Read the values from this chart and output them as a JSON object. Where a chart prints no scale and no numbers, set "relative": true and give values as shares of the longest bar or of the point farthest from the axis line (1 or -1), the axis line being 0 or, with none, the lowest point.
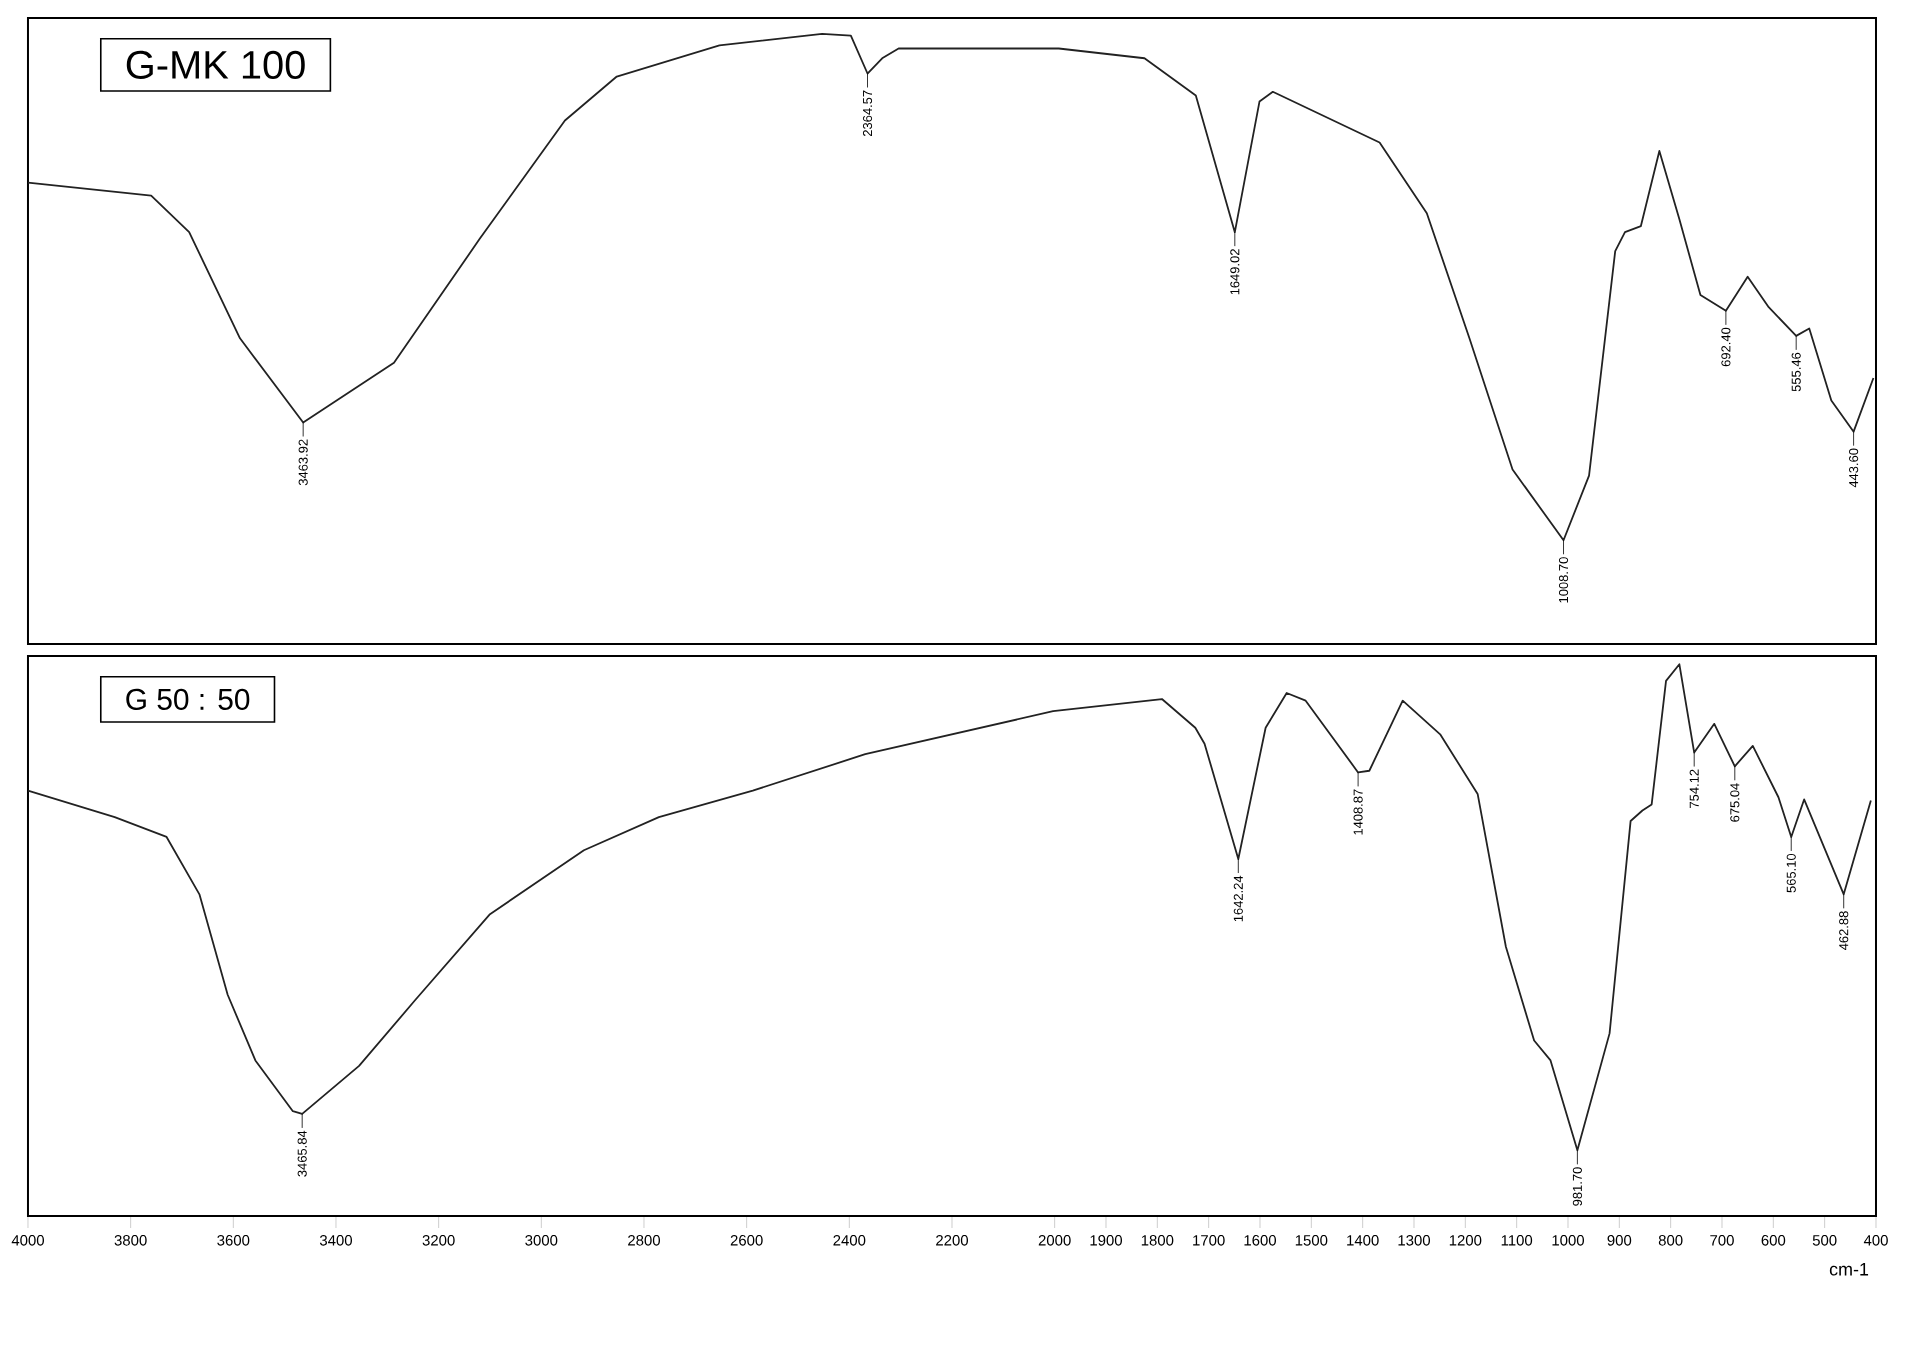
{
  "chart_data": [
    {
      "type": "line",
      "title": "G-MK 100",
      "relative": true,
      "color": "#222222",
      "xlim": [
        4000,
        400
      ],
      "tick_labels": false,
      "xticks": [
        4000,
        3800,
        3600,
        3400,
        3200,
        3000,
        2800,
        2600,
        2400,
        2200,
        2000,
        1900,
        1800,
        1700,
        1600,
        1500,
        1400,
        1300,
        1200,
        1100,
        1000,
        900,
        800,
        700,
        600,
        500,
        400
      ],
      "x": [
        4000,
        3760,
        3686,
        3587,
        3463.92,
        3287,
        3120,
        2954,
        2853,
        2653,
        2453,
        2397,
        2364.57,
        2336,
        2304,
        1992,
        1825,
        1725,
        1649.02,
        1601,
        1575,
        1367,
        1275,
        1192,
        1108,
        1008.7,
        959,
        908,
        889,
        858,
        822,
        783,
        742,
        692.4,
        650,
        609,
        555.46,
        530,
        487,
        443.6,
        405
      ],
      "values": [
        0.756,
        0.735,
        0.675,
        0.501,
        0.363,
        0.461,
        0.664,
        0.858,
        0.93,
        0.981,
        1.0,
        0.997,
        0.935,
        0.96,
        0.976,
        0.976,
        0.96,
        0.899,
        0.675,
        0.889,
        0.905,
        0.822,
        0.706,
        0.501,
        0.286,
        0.17,
        0.276,
        0.644,
        0.675,
        0.685,
        0.808,
        0.696,
        0.572,
        0.546,
        0.602,
        0.552,
        0.505,
        0.517,
        0.399,
        0.348,
        0.436
      ],
      "annotations": [
        {
          "text": "3463.92",
          "x": 3463.92,
          "y": 0.363
        },
        {
          "text": "2364.57",
          "x": 2364.57,
          "y": 0.935
        },
        {
          "text": "1649.02",
          "x": 1649.02,
          "y": 0.675
        },
        {
          "text": "1008.70",
          "x": 1008.7,
          "y": 0.17
        },
        {
          "text": "692.40",
          "x": 692.4,
          "y": 0.546
        },
        {
          "text": "555.46",
          "x": 555.46,
          "y": 0.505
        },
        {
          "text": "443.60",
          "x": 443.6,
          "y": 0.348
        }
      ]
    },
    {
      "type": "line",
      "title": "G 50 : 50",
      "relative": true,
      "color": "#222222",
      "xlim": [
        4000,
        400
      ],
      "tick_labels": "x",
      "xlabel": "cm-1",
      "xticks": [
        4000,
        3800,
        3600,
        3400,
        3200,
        3000,
        2800,
        2600,
        2400,
        2200,
        2000,
        1900,
        1800,
        1700,
        1600,
        1500,
        1400,
        1300,
        1200,
        1100,
        1000,
        900,
        800,
        700,
        600,
        500,
        400
      ],
      "x": [
        4000,
        3831,
        3730,
        3666,
        3611,
        3557,
        3484,
        3465.84,
        3355,
        3246,
        3100,
        2917,
        2771,
        2588,
        2369,
        2003,
        1791,
        1726,
        1708,
        1642.24,
        1589,
        1548,
        1511,
        1408.87,
        1387,
        1322,
        1249,
        1176,
        1121,
        1066,
        1034,
        981.7,
        919,
        878,
        855,
        837,
        809,
        783,
        754.12,
        715,
        675.04,
        640,
        590,
        565.1,
        540,
        462.88,
        410
      ],
      "values": [
        0.771,
        0.723,
        0.687,
        0.583,
        0.401,
        0.282,
        0.19,
        0.185,
        0.272,
        0.391,
        0.547,
        0.663,
        0.723,
        0.771,
        0.837,
        0.915,
        0.937,
        0.885,
        0.856,
        0.647,
        0.885,
        0.948,
        0.934,
        0.804,
        0.807,
        0.934,
        0.873,
        0.765,
        0.488,
        0.318,
        0.282,
        0.119,
        0.331,
        0.716,
        0.735,
        0.746,
        0.97,
        1.0,
        0.84,
        0.892,
        0.815,
        0.852,
        0.759,
        0.687,
        0.755,
        0.583,
        0.753
      ],
      "annotations": [
        {
          "text": "3465.84",
          "x": 3465.84,
          "y": 0.185
        },
        {
          "text": "1642.24",
          "x": 1642.24,
          "y": 0.647
        },
        {
          "text": "1408.87",
          "x": 1408.87,
          "y": 0.804
        },
        {
          "text": "981.70",
          "x": 981.7,
          "y": 0.119
        },
        {
          "text": "754.12",
          "x": 754.12,
          "y": 0.84
        },
        {
          "text": "675.04",
          "x": 675.04,
          "y": 0.815
        },
        {
          "text": "565.10",
          "x": 565.1,
          "y": 0.687
        },
        {
          "text": "462.88",
          "x": 462.88,
          "y": 0.583
        }
      ]
    }
  ]
}
